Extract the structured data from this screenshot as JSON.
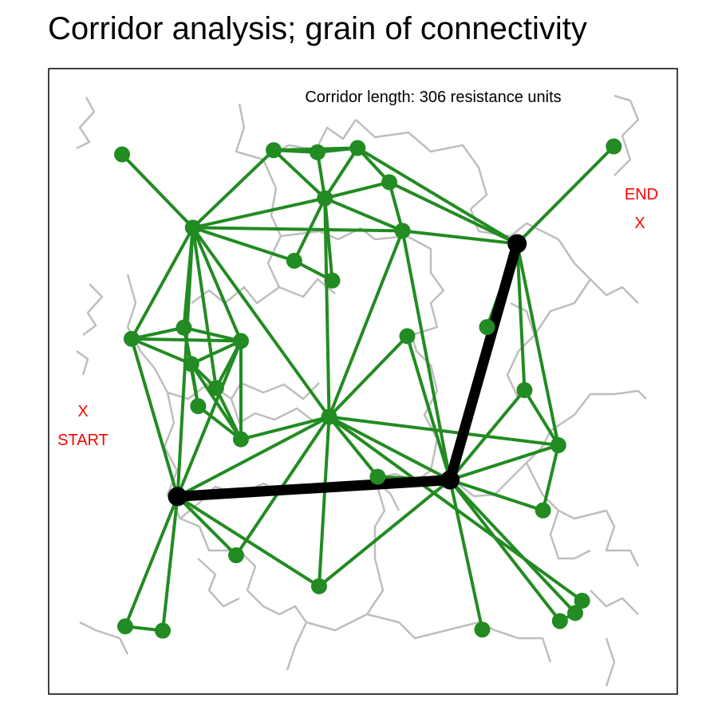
{
  "chart_data": {
    "type": "network",
    "title": "Corridor analysis; grain of connectivity",
    "annotation": "Corridor length: 306 resistance units",
    "start_label": "START",
    "end_label": "END",
    "marker_symbol": "X",
    "xlim": [
      0,
      1
    ],
    "ylim": [
      0,
      1
    ],
    "colors": {
      "edge": "#228b22",
      "node": "#228b22",
      "corridor": "#000000",
      "boundary": "#bebebe",
      "start_end_text": "#ff0000"
    },
    "nodes": [
      {
        "id": 1,
        "x": 0.065,
        "y": 0.932
      },
      {
        "id": 2,
        "x": 0.352,
        "y": 0.94
      },
      {
        "id": 3,
        "x": 0.435,
        "y": 0.936
      },
      {
        "id": 4,
        "x": 0.511,
        "y": 0.944
      },
      {
        "id": 5,
        "x": 0.571,
        "y": 0.88
      },
      {
        "id": 6,
        "x": 0.449,
        "y": 0.85
      },
      {
        "id": 7,
        "x": 0.996,
        "y": 0.947
      },
      {
        "id": 8,
        "x": 0.199,
        "y": 0.795
      },
      {
        "id": 9,
        "x": 0.596,
        "y": 0.789
      },
      {
        "id": 10,
        "x": 0.813,
        "y": 0.765
      },
      {
        "id": 11,
        "x": 0.391,
        "y": 0.733
      },
      {
        "id": 12,
        "x": 0.463,
        "y": 0.696
      },
      {
        "id": 13,
        "x": 0.756,
        "y": 0.609
      },
      {
        "id": 14,
        "x": 0.182,
        "y": 0.608
      },
      {
        "id": 15,
        "x": 0.083,
        "y": 0.587
      },
      {
        "id": 16,
        "x": 0.29,
        "y": 0.583
      },
      {
        "id": 17,
        "x": 0.605,
        "y": 0.592
      },
      {
        "id": 18,
        "x": 0.196,
        "y": 0.54
      },
      {
        "id": 19,
        "x": 0.243,
        "y": 0.495
      },
      {
        "id": 20,
        "x": 0.827,
        "y": 0.491
      },
      {
        "id": 21,
        "x": 0.209,
        "y": 0.461
      },
      {
        "id": 22,
        "x": 0.457,
        "y": 0.441
      },
      {
        "id": 23,
        "x": 0.29,
        "y": 0.399
      },
      {
        "id": 24,
        "x": 0.891,
        "y": 0.388
      },
      {
        "id": 25,
        "x": 0.549,
        "y": 0.329
      },
      {
        "id": 26,
        "x": 0.686,
        "y": 0.323
      },
      {
        "id": 27,
        "x": 0.17,
        "y": 0.292
      },
      {
        "id": 28,
        "x": 0.862,
        "y": 0.266
      },
      {
        "id": 29,
        "x": 0.281,
        "y": 0.182
      },
      {
        "id": 30,
        "x": 0.438,
        "y": 0.124
      },
      {
        "id": 31,
        "x": 0.936,
        "y": 0.097
      },
      {
        "id": 32,
        "x": 0.071,
        "y": 0.049
      },
      {
        "id": 33,
        "x": 0.142,
        "y": 0.041
      },
      {
        "id": 34,
        "x": 0.747,
        "y": 0.043
      },
      {
        "id": 35,
        "x": 0.894,
        "y": 0.059
      },
      {
        "id": 36,
        "x": 0.923,
        "y": 0.074
      }
    ],
    "edges": [
      [
        1,
        8
      ],
      [
        2,
        4
      ],
      [
        2,
        6
      ],
      [
        2,
        8
      ],
      [
        2,
        3
      ],
      [
        3,
        4
      ],
      [
        3,
        6
      ],
      [
        4,
        6
      ],
      [
        4,
        5
      ],
      [
        5,
        6
      ],
      [
        5,
        9
      ],
      [
        5,
        10
      ],
      [
        4,
        10
      ],
      [
        7,
        10
      ],
      [
        6,
        8
      ],
      [
        6,
        9
      ],
      [
        6,
        11
      ],
      [
        6,
        12
      ],
      [
        6,
        22
      ],
      [
        8,
        9
      ],
      [
        8,
        11
      ],
      [
        8,
        15
      ],
      [
        8,
        14
      ],
      [
        8,
        16
      ],
      [
        8,
        22
      ],
      [
        8,
        27
      ],
      [
        8,
        19
      ],
      [
        9,
        10
      ],
      [
        9,
        22
      ],
      [
        9,
        26
      ],
      [
        11,
        12
      ],
      [
        10,
        13
      ],
      [
        10,
        20
      ],
      [
        10,
        24
      ],
      [
        10,
        26
      ],
      [
        15,
        14
      ],
      [
        15,
        18
      ],
      [
        15,
        16
      ],
      [
        15,
        27
      ],
      [
        14,
        18
      ],
      [
        14,
        16
      ],
      [
        14,
        21
      ],
      [
        18,
        16
      ],
      [
        18,
        19
      ],
      [
        18,
        21
      ],
      [
        18,
        23
      ],
      [
        19,
        16
      ],
      [
        19,
        23
      ],
      [
        16,
        23
      ],
      [
        16,
        27
      ],
      [
        21,
        23
      ],
      [
        17,
        26
      ],
      [
        17,
        22
      ],
      [
        22,
        23
      ],
      [
        22,
        25
      ],
      [
        22,
        26
      ],
      [
        22,
        24
      ],
      [
        22,
        27
      ],
      [
        22,
        29
      ],
      [
        22,
        30
      ],
      [
        26,
        25
      ],
      [
        26,
        20
      ],
      [
        26,
        24
      ],
      [
        26,
        28
      ],
      [
        26,
        30
      ],
      [
        26,
        34
      ],
      [
        26,
        35
      ],
      [
        26,
        36
      ],
      [
        27,
        32
      ],
      [
        27,
        33
      ],
      [
        27,
        29
      ],
      [
        27,
        30
      ],
      [
        24,
        20
      ],
      [
        24,
        28
      ],
      [
        32,
        33
      ],
      [
        35,
        36
      ],
      [
        31,
        22
      ]
    ],
    "corridor_path": [
      27,
      26,
      10
    ]
  }
}
